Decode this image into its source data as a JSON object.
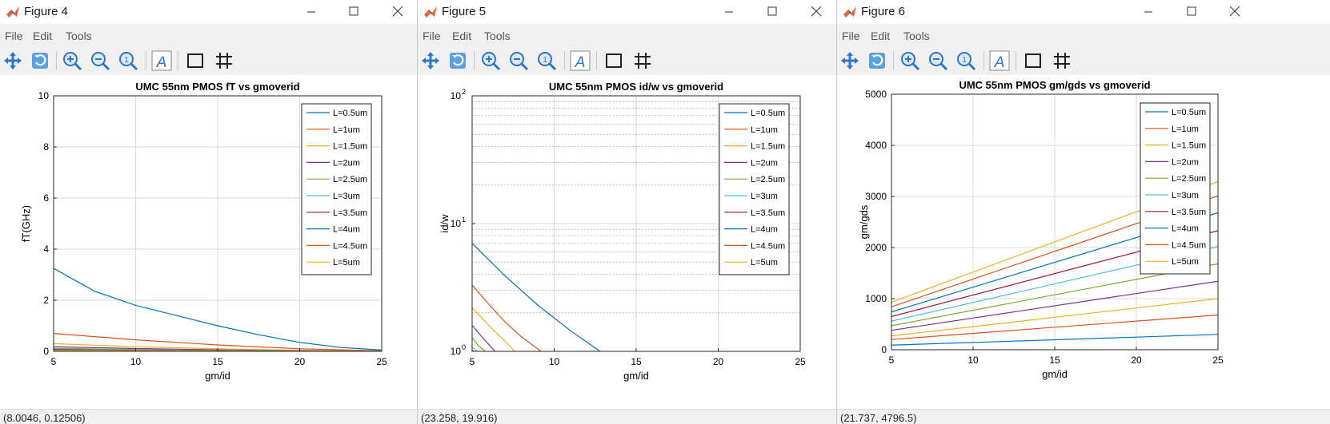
{
  "colors": {
    "series": [
      "#0072bd",
      "#d95319",
      "#edb120",
      "#7e2f8e",
      "#77ac30",
      "#4dbeee",
      "#a2142f",
      "#0072bd",
      "#d95319",
      "#edb120"
    ],
    "grid": "#d9d9d9",
    "axis": "#262626"
  },
  "windows": [
    {
      "title": "Figure 4",
      "menu": [
        "File",
        "Edit",
        "Tools"
      ],
      "toolbar_icons": [
        "pan-icon",
        "rotate-icon",
        "zoom-in-icon",
        "zoom-out-icon",
        "reset-zoom-icon",
        "insert-text-icon",
        "insert-rectangle-icon",
        "grid-icon"
      ],
      "status": "(8.0046, 0.12506)"
    },
    {
      "title": "Figure 5",
      "menu": [
        "File",
        "Edit",
        "Tools"
      ],
      "toolbar_icons": [
        "pan-icon",
        "rotate-icon",
        "zoom-in-icon",
        "zoom-out-icon",
        "reset-zoom-icon",
        "insert-text-icon",
        "insert-rectangle-icon",
        "grid-icon"
      ],
      "status": "(23.258, 19.916)"
    },
    {
      "title": "Figure 6",
      "menu": [
        "File",
        "Edit",
        "Tools"
      ],
      "toolbar_icons": [
        "pan-icon",
        "rotate-icon",
        "zoom-in-icon",
        "zoom-out-icon",
        "reset-zoom-icon",
        "insert-text-icon",
        "insert-rectangle-icon",
        "grid-icon"
      ],
      "status": "(21.737, 4796.5)"
    }
  ],
  "chart_data": [
    {
      "type": "line",
      "title": "UMC 55nm PMOS fT vs gmoverid",
      "xlabel": "gm/id",
      "ylabel": "fT(GHz)",
      "xlim": [
        5,
        25
      ],
      "ylim": [
        0,
        10
      ],
      "yscale": "linear",
      "xticks": [
        5,
        10,
        15,
        20,
        25
      ],
      "yticks": [
        0,
        2,
        4,
        6,
        8,
        10
      ],
      "ytick_labels": [
        "0",
        "2",
        "4",
        "6",
        "8",
        "10"
      ],
      "grid": true,
      "legend": "top-right",
      "series": [
        {
          "name": "L=0.5um",
          "x": [
            5,
            7.5,
            10,
            12.5,
            15,
            17.5,
            20,
            22.5,
            25
          ],
          "y": [
            3.25,
            2.35,
            1.8,
            1.4,
            1.0,
            0.65,
            0.35,
            0.15,
            0.05
          ]
        },
        {
          "name": "L=1um",
          "x": [
            5,
            10,
            15,
            20,
            25
          ],
          "y": [
            0.7,
            0.45,
            0.25,
            0.1,
            0.02
          ]
        },
        {
          "name": "L=1.5um",
          "x": [
            5,
            10,
            15,
            20,
            25
          ],
          "y": [
            0.3,
            0.18,
            0.1,
            0.04,
            0.01
          ]
        },
        {
          "name": "L=2um",
          "x": [
            5,
            10,
            15,
            20,
            25
          ],
          "y": [
            0.18,
            0.11,
            0.06,
            0.025,
            0.005
          ]
        },
        {
          "name": "L=2.5um",
          "x": [
            5,
            10,
            15,
            20,
            25
          ],
          "y": [
            0.12,
            0.07,
            0.04,
            0.015,
            0.004
          ]
        },
        {
          "name": "L=3um",
          "x": [
            5,
            10,
            15,
            20,
            25
          ],
          "y": [
            0.09,
            0.05,
            0.03,
            0.01,
            0.003
          ]
        },
        {
          "name": "L=3.5um",
          "x": [
            5,
            10,
            15,
            20,
            25
          ],
          "y": [
            0.07,
            0.04,
            0.02,
            0.008,
            0.002
          ]
        },
        {
          "name": "L=4um",
          "x": [
            5,
            10,
            15,
            20,
            25
          ],
          "y": [
            0.05,
            0.03,
            0.015,
            0.006,
            0.002
          ]
        },
        {
          "name": "L=4.5um",
          "x": [
            5,
            10,
            15,
            20,
            25
          ],
          "y": [
            0.04,
            0.025,
            0.012,
            0.005,
            0.001
          ]
        },
        {
          "name": "L=5um",
          "x": [
            5,
            10,
            15,
            20,
            25
          ],
          "y": [
            0.03,
            0.02,
            0.01,
            0.004,
            0.001
          ]
        }
      ]
    },
    {
      "type": "line",
      "title": "UMC 55nm PMOS id/w vs gmoverid",
      "xlabel": "gm/id",
      "ylabel": "id/w",
      "xlim": [
        5,
        25
      ],
      "ylim": [
        1,
        100
      ],
      "yscale": "log",
      "xticks": [
        5,
        10,
        15,
        20,
        25
      ],
      "yticks": [
        1,
        10,
        100
      ],
      "ytick_labels": [
        "10^0",
        "10^1",
        "10^2"
      ],
      "grid": true,
      "legend": "top-right",
      "series": [
        {
          "name": "L=0.5um",
          "x": [
            5,
            7,
            9,
            11,
            12.8
          ],
          "y": [
            7,
            3.9,
            2.3,
            1.45,
            1
          ]
        },
        {
          "name": "L=1um",
          "x": [
            5,
            6,
            7,
            8,
            9.2
          ],
          "y": [
            3.3,
            2.35,
            1.7,
            1.3,
            1
          ]
        },
        {
          "name": "L=1.5um",
          "x": [
            5,
            6,
            7,
            7.6
          ],
          "y": [
            2.2,
            1.6,
            1.2,
            1
          ]
        },
        {
          "name": "L=2um",
          "x": [
            5,
            5.7,
            6.4
          ],
          "y": [
            1.6,
            1.25,
            1
          ]
        },
        {
          "name": "L=2.5um",
          "x": [
            5,
            5.4,
            5.8
          ],
          "y": [
            1.28,
            1.1,
            1
          ]
        },
        {
          "name": "L=3um",
          "x": [
            5,
            5.3
          ],
          "y": [
            1.08,
            1
          ]
        },
        {
          "name": "L=3.5um",
          "x": [
            5,
            5.1
          ],
          "y": [
            1.02,
            1
          ]
        },
        {
          "name": "L=4um",
          "x": [
            5,
            5.05
          ],
          "y": [
            1.01,
            1
          ]
        },
        {
          "name": "L=4.5um",
          "x": [
            5,
            5.02
          ],
          "y": [
            1.005,
            1
          ]
        },
        {
          "name": "L=5um",
          "x": [
            5,
            5.01
          ],
          "y": [
            1.002,
            1
          ]
        }
      ]
    },
    {
      "type": "line",
      "title": "UMC 55nm PMOS gm/gds vs gmoverid",
      "xlabel": "gm/id",
      "ylabel": "gm/gds",
      "xlim": [
        5,
        25
      ],
      "ylim": [
        0,
        5000
      ],
      "yscale": "linear",
      "xticks": [
        5,
        10,
        15,
        20,
        25
      ],
      "yticks": [
        0,
        1000,
        2000,
        3000,
        4000,
        5000
      ],
      "ytick_labels": [
        "0",
        "1000",
        "2000",
        "3000",
        "4000",
        "5000"
      ],
      "grid": true,
      "legend": "top-right",
      "series": [
        {
          "name": "L=0.5um",
          "x": [
            5,
            25
          ],
          "y": [
            90,
            300
          ]
        },
        {
          "name": "L=1um",
          "x": [
            5,
            25
          ],
          "y": [
            200,
            680
          ]
        },
        {
          "name": "L=1.5um",
          "x": [
            5,
            25
          ],
          "y": [
            270,
            1000
          ]
        },
        {
          "name": "L=2um",
          "x": [
            5,
            25
          ],
          "y": [
            380,
            1340
          ]
        },
        {
          "name": "L=2.5um",
          "x": [
            5,
            25
          ],
          "y": [
            470,
            1680
          ]
        },
        {
          "name": "L=3um",
          "x": [
            5,
            25
          ],
          "y": [
            560,
            2020
          ]
        },
        {
          "name": "L=3.5um",
          "x": [
            5,
            25
          ],
          "y": [
            650,
            2330
          ]
        },
        {
          "name": "L=4um",
          "x": [
            5,
            25
          ],
          "y": [
            740,
            2680
          ]
        },
        {
          "name": "L=4.5um",
          "x": [
            5,
            25
          ],
          "y": [
            840,
            3010
          ]
        },
        {
          "name": "L=5um",
          "x": [
            5,
            25
          ],
          "y": [
            930,
            3290
          ]
        }
      ]
    }
  ]
}
